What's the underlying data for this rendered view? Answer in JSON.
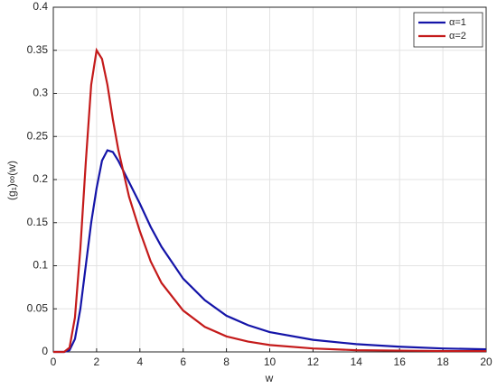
{
  "chart_data": {
    "type": "line",
    "xlabel": "w",
    "ylabel": "(g₁)∞(w)",
    "x": [
      0,
      0.5,
      0.75,
      1,
      1.25,
      1.5,
      1.75,
      2,
      2.25,
      2.5,
      2.75,
      3,
      3.5,
      4,
      4.5,
      5,
      6,
      7,
      8,
      9,
      10,
      12,
      14,
      16,
      18,
      20
    ],
    "series": [
      {
        "name": "α=1",
        "color": "#1414a8",
        "values": [
          0,
          0,
          0.002,
          0.015,
          0.05,
          0.1,
          0.15,
          0.19,
          0.222,
          0.234,
          0.232,
          0.222,
          0.197,
          0.172,
          0.145,
          0.122,
          0.085,
          0.06,
          0.042,
          0.031,
          0.023,
          0.014,
          0.009,
          0.006,
          0.004,
          0.003
        ]
      },
      {
        "name": "α=2",
        "color": "#c41a1a",
        "values": [
          0,
          0,
          0.005,
          0.04,
          0.12,
          0.22,
          0.31,
          0.35,
          0.34,
          0.31,
          0.27,
          0.235,
          0.18,
          0.14,
          0.105,
          0.08,
          0.048,
          0.029,
          0.018,
          0.012,
          0.008,
          0.004,
          0.002,
          0.0015,
          0.001,
          0.001
        ]
      }
    ],
    "xlim": [
      0,
      20
    ],
    "xticks": [
      0,
      2,
      4,
      6,
      8,
      10,
      12,
      14,
      16,
      18,
      20
    ],
    "ylim": [
      0,
      0.4
    ],
    "yticks": [
      0,
      0.05,
      0.1,
      0.15,
      0.2,
      0.25,
      0.3,
      0.35,
      0.4
    ],
    "grid": true,
    "legend": "upper-right"
  }
}
